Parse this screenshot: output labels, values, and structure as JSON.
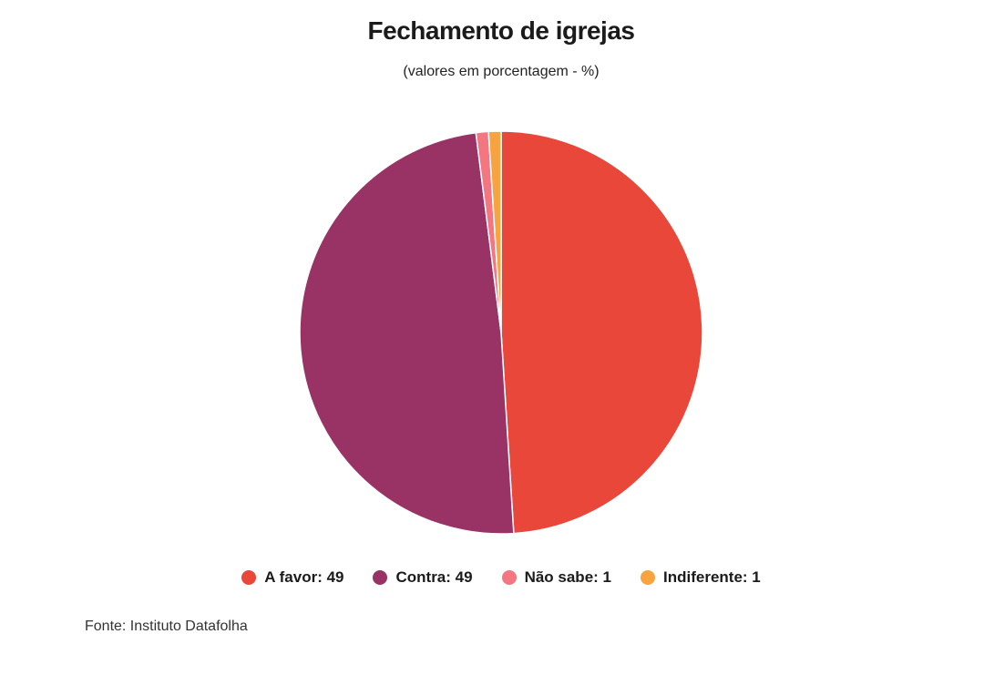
{
  "header": {
    "title": "Fechamento de igrejas",
    "subtitle": "(valores em porcentagem - %)"
  },
  "legend": [
    {
      "label": "A favor: 49",
      "color": "#e8473a"
    },
    {
      "label": "Contra: 49",
      "color": "#993365"
    },
    {
      "label": "Não sabe: 1",
      "color": "#f47680"
    },
    {
      "label": "Indiferente: 1",
      "color": "#f7a340"
    }
  ],
  "footer": {
    "source": "Fonte: Instituto Datafolha"
  },
  "chart_data": {
    "type": "pie",
    "title": "Fechamento de igrejas",
    "subtitle": "(valores em porcentagem - %)",
    "categories": [
      "A favor",
      "Contra",
      "Não sabe",
      "Indiferente"
    ],
    "values": [
      49,
      49,
      1,
      1
    ],
    "colors": [
      "#e8473a",
      "#993365",
      "#f47680",
      "#f7a340"
    ],
    "start_angle": "12 o'clock, clockwise",
    "legend_position": "bottom",
    "source": "Fonte: Instituto Datafolha"
  }
}
